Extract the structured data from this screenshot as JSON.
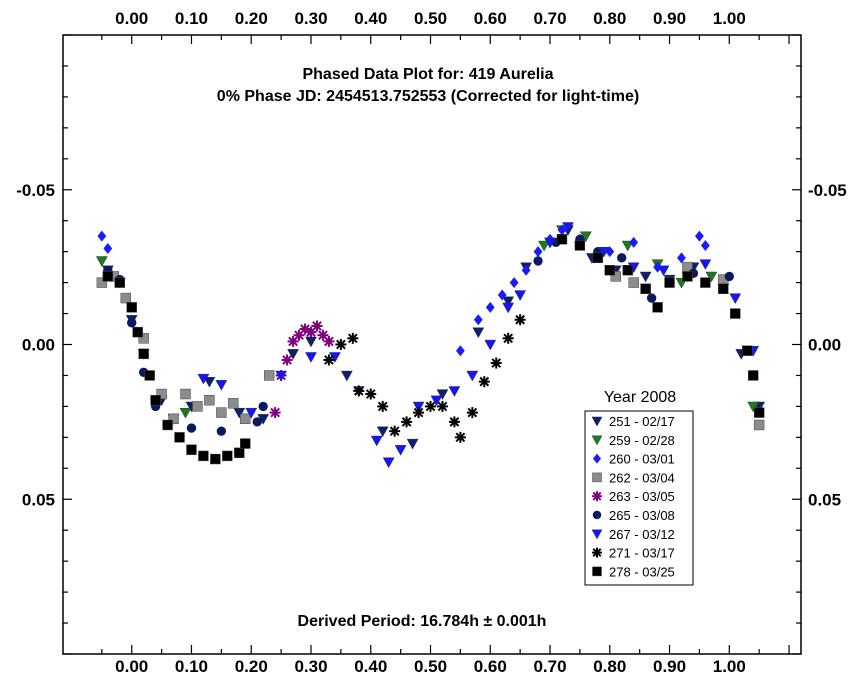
{
  "chart_data": {
    "type": "scatter",
    "title": "Phased Data Plot for: 419 Aurelia",
    "subtitle": "0% Phase JD:  2454513.752553   (Corrected for light-time)",
    "footer": "Derived Period: 16.784h  ± 0.001h",
    "xlabel": "",
    "ylabel": "",
    "xlim": [
      -0.115,
      1.12
    ],
    "ylim": [
      -0.1,
      0.1
    ],
    "y_inverted": true,
    "grid": false,
    "x_ticks": [
      "0.00",
      "0.10",
      "0.20",
      "0.30",
      "0.40",
      "0.50",
      "0.60",
      "0.70",
      "0.80",
      "0.90",
      "1.00"
    ],
    "y_ticks": [
      "-0.05",
      "0.00",
      "0.05"
    ],
    "legend": {
      "title": "Year 2008",
      "placement": "lower-right",
      "entries": [
        {
          "label": "251 - 02/17",
          "marker": "triangle-down",
          "color": "#0d1f6e"
        },
        {
          "label": "259 - 02/28",
          "marker": "triangle-down",
          "color": "#1f7a1f"
        },
        {
          "label": "260 - 03/01",
          "marker": "diamond",
          "color": "#1a1aff"
        },
        {
          "label": "262 - 03/04",
          "marker": "square",
          "color": "#8c8c8c"
        },
        {
          "label": "263 - 03/05",
          "marker": "asterisk",
          "color": "#800080"
        },
        {
          "label": "265 - 03/08",
          "marker": "circle",
          "color": "#0a1a5c"
        },
        {
          "label": "267 - 03/12",
          "marker": "triangle-down",
          "color": "#1414ff"
        },
        {
          "label": "271 - 03/17",
          "marker": "asterisk",
          "color": "#000000"
        },
        {
          "label": "278 - 03/25",
          "marker": "square",
          "color": "#000000"
        }
      ]
    },
    "series": [
      {
        "name": "251 - 02/17",
        "marker": "triangle-down",
        "color": "#0d1f6e",
        "x": [
          -0.04,
          -0.02,
          0.0,
          0.02,
          0.05,
          0.07,
          0.1,
          0.13,
          0.18,
          0.22,
          0.27,
          0.3,
          0.36,
          0.42,
          0.47,
          0.52,
          0.58,
          0.63,
          0.66,
          0.7,
          0.73,
          0.77,
          0.81,
          0.86,
          0.9,
          0.94,
          0.99,
          1.02,
          1.05
        ],
        "y": [
          -0.024,
          -0.02,
          -0.008,
          0.003,
          0.018,
          0.024,
          0.02,
          0.012,
          0.022,
          0.024,
          0.003,
          -0.001,
          0.01,
          0.028,
          0.032,
          0.016,
          -0.004,
          -0.014,
          -0.025,
          -0.033,
          -0.037,
          -0.028,
          -0.024,
          -0.022,
          -0.021,
          -0.025,
          -0.018,
          0.003,
          0.02
        ]
      },
      {
        "name": "259 - 02/28",
        "marker": "triangle-down",
        "color": "#1f7a1f",
        "x": [
          -0.05,
          0.04,
          0.09,
          0.69,
          0.72,
          0.76,
          0.83,
          0.88,
          0.92,
          0.97,
          1.04
        ],
        "y": [
          -0.027,
          0.019,
          0.022,
          -0.032,
          -0.037,
          -0.035,
          -0.032,
          -0.026,
          -0.02,
          -0.022,
          0.02
        ]
      },
      {
        "name": "260 - 03/01",
        "marker": "diamond",
        "color": "#1a1aff",
        "x": [
          -0.05,
          -0.04,
          0.55,
          0.58,
          0.6,
          0.62,
          0.64,
          0.66,
          0.68,
          0.7,
          0.72,
          0.75,
          0.8,
          0.84,
          0.88,
          0.92,
          0.95,
          0.96
        ],
        "y": [
          -0.035,
          -0.031,
          0.002,
          -0.008,
          -0.012,
          -0.016,
          -0.02,
          -0.024,
          -0.03,
          -0.034,
          -0.037,
          -0.034,
          -0.03,
          -0.033,
          -0.025,
          -0.028,
          -0.035,
          -0.032
        ]
      },
      {
        "name": "262 - 03/04",
        "marker": "square",
        "color": "#8c8c8c",
        "x": [
          -0.05,
          -0.03,
          -0.01,
          0.02,
          0.05,
          0.07,
          0.09,
          0.11,
          0.13,
          0.15,
          0.17,
          0.19,
          0.23,
          0.81,
          0.84,
          0.86,
          0.93,
          0.99,
          1.05
        ],
        "y": [
          -0.02,
          -0.022,
          -0.015,
          -0.002,
          0.016,
          0.024,
          0.016,
          0.02,
          0.018,
          0.022,
          0.019,
          0.024,
          0.01,
          -0.022,
          -0.02,
          -0.018,
          -0.025,
          -0.021,
          0.026
        ]
      },
      {
        "name": "263 - 03/05",
        "marker": "asterisk",
        "color": "#800080",
        "x": [
          0.24,
          0.25,
          0.26,
          0.27,
          0.28,
          0.29,
          0.3,
          0.31,
          0.32,
          0.33
        ],
        "y": [
          0.022,
          0.01,
          0.005,
          -0.001,
          -0.003,
          -0.005,
          -0.004,
          -0.006,
          -0.003,
          -0.001
        ]
      },
      {
        "name": "265 - 03/08",
        "marker": "circle",
        "color": "#0a1a5c",
        "x": [
          -0.04,
          -0.02,
          0.0,
          0.02,
          0.04,
          0.1,
          0.15,
          0.21,
          0.22,
          0.68,
          0.71,
          0.75,
          0.78,
          0.82,
          0.87,
          0.88,
          0.94,
          1.0
        ],
        "y": [
          -0.024,
          -0.021,
          -0.007,
          0.009,
          0.02,
          0.027,
          0.028,
          0.025,
          0.02,
          -0.027,
          -0.033,
          -0.034,
          -0.03,
          -0.028,
          -0.015,
          -0.012,
          -0.023,
          -0.022
        ]
      },
      {
        "name": "267 - 03/12",
        "marker": "triangle-down",
        "color": "#1414ff",
        "x": [
          0.12,
          0.15,
          0.2,
          0.25,
          0.3,
          0.34,
          0.38,
          0.41,
          0.43,
          0.45,
          0.48,
          0.51,
          0.54,
          0.57,
          0.6,
          0.63,
          0.65,
          0.7,
          0.73,
          0.79,
          0.84,
          0.89,
          0.93,
          0.96,
          1.01,
          1.04
        ],
        "y": [
          0.011,
          0.013,
          0.022,
          0.01,
          0.004,
          0.004,
          0.015,
          0.031,
          0.038,
          0.034,
          0.02,
          0.018,
          0.015,
          0.01,
          0.0,
          -0.012,
          -0.016,
          -0.033,
          -0.038,
          -0.03,
          -0.025,
          -0.024,
          -0.022,
          -0.026,
          -0.015,
          0.002
        ]
      },
      {
        "name": "271 - 03/17",
        "marker": "asterisk",
        "color": "#000000",
        "x": [
          0.33,
          0.35,
          0.37,
          0.38,
          0.4,
          0.42,
          0.44,
          0.46,
          0.48,
          0.5,
          0.52,
          0.54,
          0.55,
          0.57,
          0.59,
          0.61,
          0.63,
          0.65
        ],
        "y": [
          0.005,
          0.0,
          -0.002,
          0.015,
          0.016,
          0.02,
          0.028,
          0.025,
          0.022,
          0.02,
          0.02,
          0.025,
          0.03,
          0.022,
          0.012,
          0.006,
          -0.002,
          -0.008
        ]
      },
      {
        "name": "278 - 03/25",
        "marker": "square",
        "color": "#000000",
        "x": [
          -0.04,
          -0.02,
          0.0,
          0.01,
          0.02,
          0.03,
          0.04,
          0.06,
          0.08,
          0.1,
          0.12,
          0.14,
          0.16,
          0.18,
          0.19,
          0.72,
          0.75,
          0.78,
          0.8,
          0.83,
          0.86,
          0.88,
          0.9,
          0.93,
          0.96,
          0.99,
          1.01,
          1.03,
          1.04,
          1.05
        ],
        "y": [
          -0.022,
          -0.02,
          -0.012,
          -0.004,
          0.003,
          0.01,
          0.018,
          0.026,
          0.03,
          0.034,
          0.036,
          0.037,
          0.036,
          0.035,
          0.032,
          -0.034,
          -0.032,
          -0.028,
          -0.024,
          -0.024,
          -0.018,
          -0.012,
          -0.02,
          -0.022,
          -0.02,
          -0.018,
          -0.01,
          0.002,
          0.01,
          0.022
        ]
      }
    ]
  }
}
